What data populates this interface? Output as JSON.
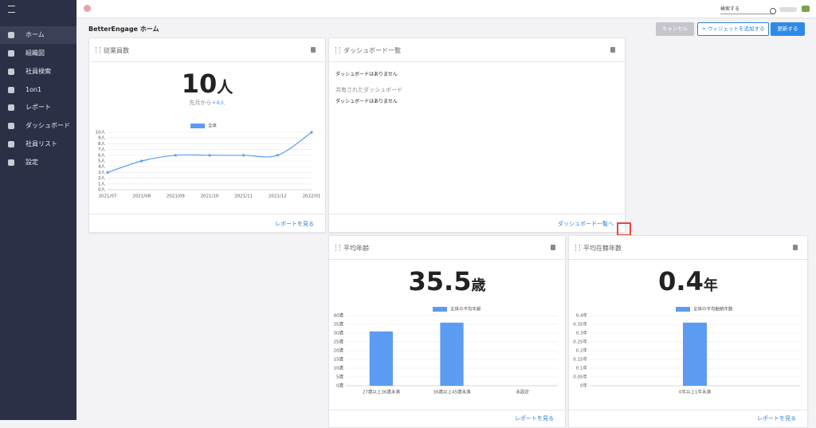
{
  "sidebar": {
    "items": [
      "ホーム",
      "組織図",
      "社員検索",
      "1on1",
      "レポート",
      "ダッシュボード",
      "社員リスト",
      "設定"
    ]
  },
  "topbar": {
    "search_placeholder": "検索する"
  },
  "header": {
    "title": "BetterEngage ホーム",
    "buttons": [
      "キャンセル",
      "+ ウィジェットを追加する",
      "更新する"
    ]
  },
  "widgets": [
    {
      "title": "従業員数",
      "value": 10,
      "unit": "人",
      "note": "先月から",
      "change": "+4人",
      "link": "レポートを見る"
    },
    {
      "title": "ダッシュボード一覧",
      "empty": "ダッシュボードはありません",
      "shared_heading": "共有されたダッシュボード",
      "shared_empty": "ダッシュボードはありません",
      "link": "ダッシュボード一覧へ"
    },
    {
      "title": "平均年齢",
      "value": 35.5,
      "unit": "歳",
      "link": "レポートを見る"
    },
    {
      "title": "平均在籍年数",
      "value": 0.4,
      "unit": "年",
      "link": "レポートを見る"
    }
  ],
  "chart_data": [
    {
      "type": "line",
      "categories": [
        "2021/07",
        "2021/08",
        "2021/09",
        "2021/10",
        "2021/11",
        "2021/12",
        "2022/01"
      ],
      "series": [
        {
          "name": "全体",
          "color": "#5b9cf2",
          "values": [
            3,
            5,
            6,
            6,
            6,
            6,
            10
          ]
        }
      ],
      "ylim": [
        0,
        10
      ],
      "yticks": [
        {
          "value": 0,
          "label": "0人"
        },
        {
          "value": 1,
          "label": "1人"
        },
        {
          "value": 2,
          "label": "2人"
        },
        {
          "value": 3,
          "label": "3人"
        },
        {
          "value": 4,
          "label": "4人"
        },
        {
          "value": 5,
          "label": "5人"
        },
        {
          "value": 6,
          "label": "6人"
        },
        {
          "value": 7,
          "label": "7人"
        },
        {
          "value": 8,
          "label": "8人"
        },
        {
          "value": 9,
          "label": "9人"
        },
        {
          "value": 10,
          "label": "10人"
        }
      ],
      "grid": true
    },
    {
      "type": "bar",
      "categories": [
        "27歳以上36歳未満",
        "36歳以上45歳未満",
        "未設定"
      ],
      "series": [
        {
          "name": "全体の平均年齢",
          "color": "#5b9cf2",
          "values": [
            31,
            36,
            0
          ]
        }
      ],
      "ylim": [
        0,
        40
      ],
      "yticks": [
        {
          "value": 0,
          "label": "0歳"
        },
        {
          "value": 5,
          "label": "5歳"
        },
        {
          "value": 10,
          "label": "10歳"
        },
        {
          "value": 15,
          "label": "15歳"
        },
        {
          "value": 20,
          "label": "20歳"
        },
        {
          "value": 25,
          "label": "25歳"
        },
        {
          "value": 30,
          "label": "30歳"
        },
        {
          "value": 35,
          "label": "35歳"
        },
        {
          "value": 40,
          "label": "40歳"
        }
      ],
      "grid": true
    },
    {
      "type": "bar",
      "categories": [
        "0年以上1年未満"
      ],
      "series": [
        {
          "name": "全体の平均勤続年数",
          "color": "#5b9cf2",
          "values": [
            0.36
          ]
        }
      ],
      "ylim": [
        0,
        0.4
      ],
      "yticks": [
        {
          "value": 0,
          "label": "0年"
        },
        {
          "value": 0.05,
          "label": "0.05年"
        },
        {
          "value": 0.1,
          "label": "0.1年"
        },
        {
          "value": 0.15,
          "label": "0.15年"
        },
        {
          "value": 0.2,
          "label": "0.2年"
        },
        {
          "value": 0.25,
          "label": "0.25年"
        },
        {
          "value": 0.3,
          "label": "0.3年"
        },
        {
          "value": 0.35,
          "label": "0.35年"
        },
        {
          "value": 0.4,
          "label": "0.4年"
        }
      ],
      "grid": true
    }
  ]
}
